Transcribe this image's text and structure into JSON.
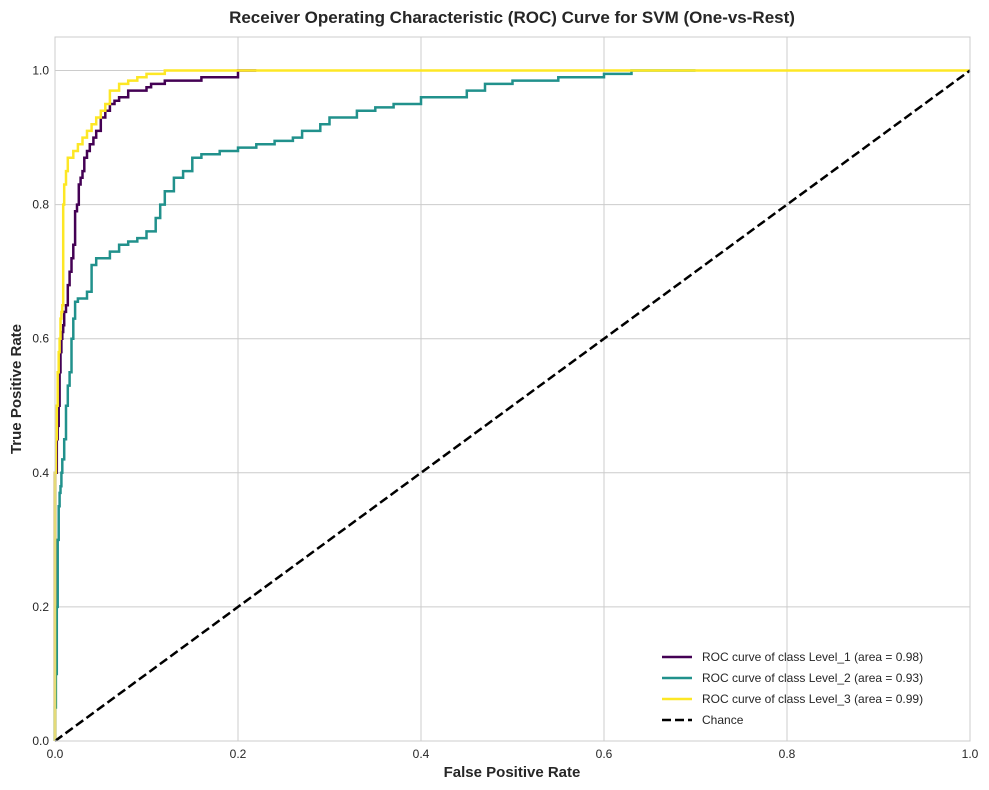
{
  "chart_data": {
    "type": "line",
    "title": "Receiver Operating Characteristic (ROC) Curve for SVM (One-vs-Rest)",
    "xlabel": "False Positive Rate",
    "ylabel": "True Positive Rate",
    "xlim": [
      0.0,
      1.0
    ],
    "ylim": [
      0.0,
      1.05
    ],
    "xticks": [
      0.0,
      0.2,
      0.4,
      0.6,
      0.8,
      1.0
    ],
    "yticks": [
      0.0,
      0.2,
      0.4,
      0.6,
      0.8,
      1.0
    ],
    "xtick_labels": [
      "0.0",
      "0.2",
      "0.4",
      "0.6",
      "0.8",
      "1.0"
    ],
    "ytick_labels": [
      "0.0",
      "0.2",
      "0.4",
      "0.6",
      "0.8",
      "1.0"
    ],
    "grid": true,
    "legend_position": "lower-right",
    "series": [
      {
        "name": "ROC curve of class Level_1 (area = 0.98)",
        "color": "#440154",
        "dash": "solid",
        "x": [
          0.0,
          0.0,
          0.002,
          0.003,
          0.004,
          0.005,
          0.006,
          0.007,
          0.008,
          0.009,
          0.01,
          0.012,
          0.014,
          0.016,
          0.018,
          0.02,
          0.022,
          0.024,
          0.026,
          0.028,
          0.03,
          0.032,
          0.035,
          0.038,
          0.042,
          0.045,
          0.05,
          0.055,
          0.06,
          0.065,
          0.07,
          0.075,
          0.08,
          0.09,
          0.1,
          0.105,
          0.11,
          0.12,
          0.14,
          0.16,
          0.17,
          0.18,
          0.2,
          0.22
        ],
        "y": [
          0.0,
          0.3,
          0.4,
          0.45,
          0.47,
          0.5,
          0.55,
          0.58,
          0.6,
          0.61,
          0.62,
          0.64,
          0.65,
          0.68,
          0.7,
          0.72,
          0.74,
          0.79,
          0.8,
          0.83,
          0.84,
          0.85,
          0.87,
          0.88,
          0.89,
          0.9,
          0.91,
          0.93,
          0.94,
          0.95,
          0.955,
          0.96,
          0.96,
          0.97,
          0.97,
          0.975,
          0.98,
          0.98,
          0.985,
          0.985,
          0.99,
          0.99,
          0.99,
          1.0
        ]
      },
      {
        "name": "ROC curve of class Level_2 (area = 0.93)",
        "color": "#21918c",
        "dash": "solid",
        "x": [
          0.0,
          0.001,
          0.002,
          0.003,
          0.004,
          0.005,
          0.006,
          0.007,
          0.008,
          0.01,
          0.012,
          0.014,
          0.016,
          0.018,
          0.02,
          0.022,
          0.025,
          0.03,
          0.035,
          0.04,
          0.045,
          0.05,
          0.06,
          0.07,
          0.08,
          0.09,
          0.1,
          0.11,
          0.115,
          0.12,
          0.13,
          0.14,
          0.15,
          0.16,
          0.18,
          0.2,
          0.22,
          0.24,
          0.26,
          0.27,
          0.29,
          0.3,
          0.33,
          0.35,
          0.37,
          0.4,
          0.45,
          0.47,
          0.5,
          0.55,
          0.6,
          0.63,
          0.7
        ],
        "y": [
          0.0,
          0.05,
          0.1,
          0.2,
          0.3,
          0.35,
          0.37,
          0.38,
          0.4,
          0.42,
          0.45,
          0.5,
          0.53,
          0.55,
          0.6,
          0.63,
          0.655,
          0.66,
          0.66,
          0.67,
          0.71,
          0.72,
          0.72,
          0.73,
          0.74,
          0.745,
          0.75,
          0.76,
          0.78,
          0.8,
          0.82,
          0.84,
          0.85,
          0.87,
          0.875,
          0.88,
          0.885,
          0.89,
          0.895,
          0.9,
          0.91,
          0.92,
          0.93,
          0.94,
          0.945,
          0.95,
          0.96,
          0.97,
          0.98,
          0.985,
          0.99,
          0.995,
          1.0
        ]
      },
      {
        "name": "ROC curve of class Level_3 (area = 0.99)",
        "color": "#fde725",
        "dash": "solid",
        "x": [
          0.0,
          0.0,
          0.001,
          0.002,
          0.003,
          0.004,
          0.005,
          0.006,
          0.007,
          0.008,
          0.009,
          0.01,
          0.012,
          0.014,
          0.016,
          0.018,
          0.02,
          0.025,
          0.03,
          0.035,
          0.04,
          0.045,
          0.05,
          0.055,
          0.06,
          0.07,
          0.08,
          0.09,
          0.1,
          0.12,
          0.14,
          0.16,
          0.2,
          1.0
        ],
        "y": [
          0.0,
          0.3,
          0.4,
          0.45,
          0.5,
          0.55,
          0.58,
          0.6,
          0.63,
          0.64,
          0.65,
          0.8,
          0.83,
          0.85,
          0.87,
          0.87,
          0.87,
          0.88,
          0.89,
          0.9,
          0.91,
          0.92,
          0.93,
          0.94,
          0.95,
          0.97,
          0.98,
          0.985,
          0.99,
          0.995,
          1.0,
          1.0,
          1.0,
          1.0
        ]
      },
      {
        "name": "Chance",
        "color": "#000000",
        "dash": "dashed",
        "x": [
          0.0,
          1.0
        ],
        "y": [
          0.0,
          1.0
        ]
      }
    ]
  }
}
